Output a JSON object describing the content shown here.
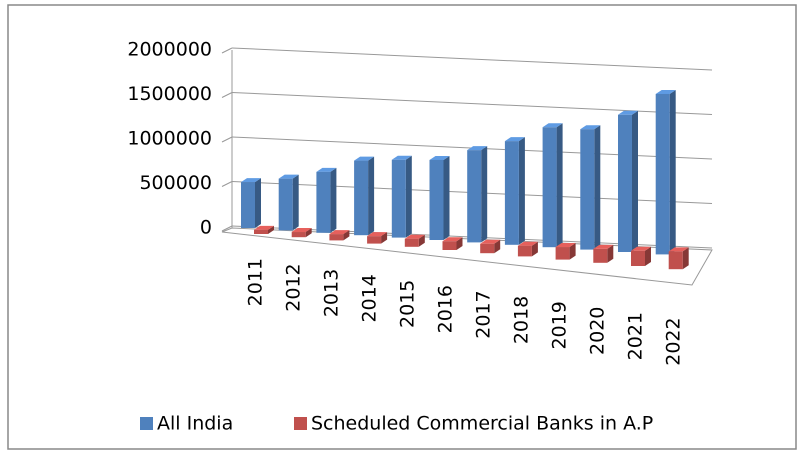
{
  "chart_data": {
    "type": "bar3d",
    "categories": [
      "2011",
      "2012",
      "2013",
      "2014",
      "2015",
      "2016",
      "2017",
      "2018",
      "2019",
      "2020",
      "2021",
      "2022"
    ],
    "series": [
      {
        "name": "All India",
        "color": "#4f81bd",
        "values": [
          450000,
          500000,
          580000,
          700000,
          720000,
          730000,
          830000,
          920000,
          1050000,
          1040000,
          1170000,
          1350000
        ]
      },
      {
        "name": "Scheduled Commercial Banks in A.P",
        "color": "#c0504d",
        "values": [
          40000,
          50000,
          60000,
          70000,
          75000,
          80000,
          85000,
          95000,
          110000,
          120000,
          130000,
          150000
        ]
      }
    ],
    "ylim": [
      0,
      2000000
    ],
    "yticks": [
      0,
      500000,
      1000000,
      1500000,
      2000000
    ],
    "grid": true,
    "legend": "bottom"
  }
}
